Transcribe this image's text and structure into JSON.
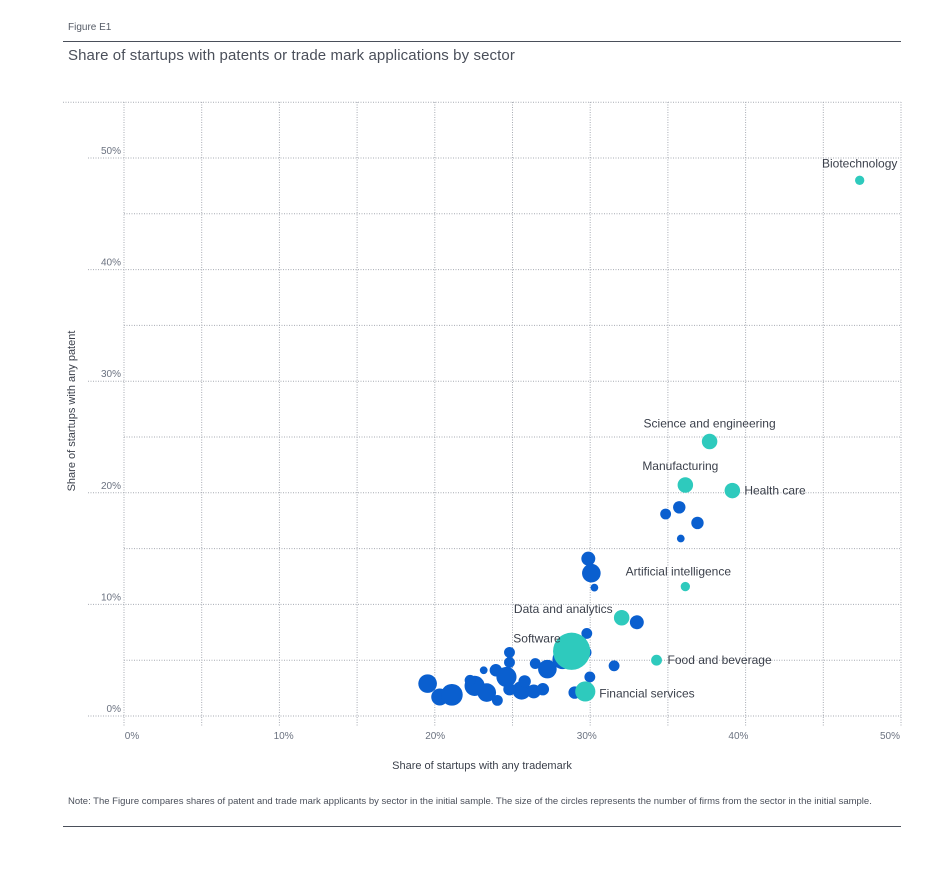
{
  "figure": {
    "label": "Figure E1",
    "title": "Share of startups with patents or trade mark applications by sector",
    "note": "Note: The Figure compares shares of patent and trade mark applicants by sector in the initial sample. The size of the circles represents the number of firms from the sector in the initial sample."
  },
  "colors": {
    "highlight": "#2ecabd",
    "other": "#0a5fcf",
    "grid": "#a7abb3",
    "label_text": "#3a3f4a",
    "tick_text": "#6b7280"
  },
  "chart_data": {
    "type": "scatter",
    "title": "Share of startups with patents or trade mark applications by sector",
    "xlabel": "Share of startups with any trademark",
    "ylabel": "Share of startups with any patent",
    "xlim": [
      0,
      50
    ],
    "ylim": [
      0,
      50
    ],
    "x_ticks": [
      "0%",
      "10%",
      "20%",
      "30%",
      "40%",
      "50%"
    ],
    "y_ticks": [
      "0%",
      "10%",
      "20%",
      "30%",
      "40%",
      "50%"
    ],
    "grid": true,
    "size_encoding": "number of firms from the sector in the initial sample (relative)",
    "labeled_sectors": [
      {
        "name": "Biotechnology",
        "x": 48.0,
        "y": 48.0,
        "size": 3
      },
      {
        "name": "Science and engineering",
        "x": 38.1,
        "y": 24.6,
        "size": 5
      },
      {
        "name": "Manufacturing",
        "x": 36.5,
        "y": 20.7,
        "size": 5
      },
      {
        "name": "Health care",
        "x": 39.6,
        "y": 20.2,
        "size": 5
      },
      {
        "name": "Artificial intelligence",
        "x": 36.5,
        "y": 11.6,
        "size": 3
      },
      {
        "name": "Data and analytics",
        "x": 32.3,
        "y": 8.8,
        "size": 5
      },
      {
        "name": "Software",
        "x": 29.0,
        "y": 5.8,
        "size": 12
      },
      {
        "name": "Food and beverage",
        "x": 34.6,
        "y": 5.0,
        "size": 3.5
      },
      {
        "name": "Financial services",
        "x": 29.9,
        "y": 2.2,
        "size": 6.5
      }
    ],
    "other_sectors": [
      {
        "x": 35.2,
        "y": 18.1,
        "size": 3.5
      },
      {
        "x": 36.1,
        "y": 18.7,
        "size": 4
      },
      {
        "x": 37.3,
        "y": 17.3,
        "size": 4
      },
      {
        "x": 36.2,
        "y": 15.9,
        "size": 2.5
      },
      {
        "x": 30.1,
        "y": 14.1,
        "size": 4.5
      },
      {
        "x": 30.3,
        "y": 12.8,
        "size": 6
      },
      {
        "x": 30.5,
        "y": 11.5,
        "size": 2.5
      },
      {
        "x": 33.3,
        "y": 8.4,
        "size": 4.5
      },
      {
        "x": 30.0,
        "y": 7.4,
        "size": 3.5
      },
      {
        "x": 29.6,
        "y": 6.7,
        "size": 3.5
      },
      {
        "x": 29.4,
        "y": 5.7,
        "size": 4.5
      },
      {
        "x": 29.9,
        "y": 5.7,
        "size": 4
      },
      {
        "x": 28.4,
        "y": 5.1,
        "size": 6.5
      },
      {
        "x": 27.4,
        "y": 4.2,
        "size": 6
      },
      {
        "x": 26.6,
        "y": 4.7,
        "size": 3.5
      },
      {
        "x": 24.9,
        "y": 5.7,
        "size": 3.5
      },
      {
        "x": 24.9,
        "y": 4.8,
        "size": 3.5
      },
      {
        "x": 24.0,
        "y": 4.1,
        "size": 4
      },
      {
        "x": 24.7,
        "y": 3.5,
        "size": 6.5
      },
      {
        "x": 23.2,
        "y": 4.1,
        "size": 2.5
      },
      {
        "x": 22.6,
        "y": 2.7,
        "size": 6.5
      },
      {
        "x": 23.4,
        "y": 2.1,
        "size": 6
      },
      {
        "x": 24.1,
        "y": 1.4,
        "size": 3.5
      },
      {
        "x": 25.7,
        "y": 2.3,
        "size": 6
      },
      {
        "x": 26.5,
        "y": 2.2,
        "size": 4.5
      },
      {
        "x": 27.1,
        "y": 2.4,
        "size": 4
      },
      {
        "x": 24.9,
        "y": 2.4,
        "size": 4
      },
      {
        "x": 19.5,
        "y": 2.9,
        "size": 6
      },
      {
        "x": 20.3,
        "y": 1.7,
        "size": 5.5
      },
      {
        "x": 21.1,
        "y": 1.9,
        "size": 7
      },
      {
        "x": 22.3,
        "y": 3.2,
        "size": 3.5
      },
      {
        "x": 29.2,
        "y": 2.1,
        "size": 4
      },
      {
        "x": 30.2,
        "y": 3.5,
        "size": 3.5
      },
      {
        "x": 31.8,
        "y": 4.5,
        "size": 3.5
      },
      {
        "x": 25.9,
        "y": 3.1,
        "size": 4
      }
    ]
  }
}
